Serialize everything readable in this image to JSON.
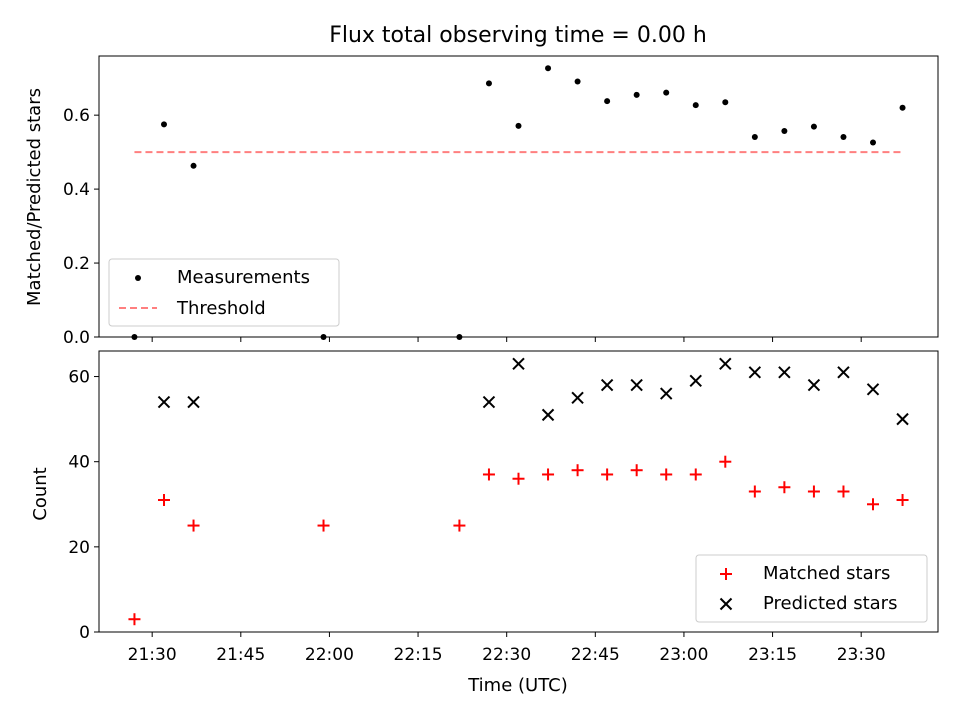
{
  "chart_data": [
    {
      "type": "scatter",
      "title": "Flux total observing time = 0.00 h",
      "ylabel": "Matched/Predicted stars",
      "ylim": [
        0,
        0.76
      ],
      "yticks": [
        "0.0",
        "0.2",
        "0.4",
        "0.6"
      ],
      "xlim": [
        "21:21",
        "23:43"
      ],
      "series": [
        {
          "name": "Measurements",
          "marker": "dot",
          "color": "#000000",
          "points": [
            [
              "21:27",
              0.0
            ],
            [
              "21:32",
              0.575
            ],
            [
              "21:37",
              0.463
            ],
            [
              "21:59",
              0.0
            ],
            [
              "22:22",
              0.0
            ],
            [
              "22:27",
              0.686
            ],
            [
              "22:32",
              0.571
            ],
            [
              "22:37",
              0.727
            ],
            [
              "22:42",
              0.691
            ],
            [
              "22:47",
              0.638
            ],
            [
              "22:52",
              0.655
            ],
            [
              "22:57",
              0.661
            ],
            [
              "23:02",
              0.627
            ],
            [
              "23:07",
              0.635
            ],
            [
              "23:12",
              0.541
            ],
            [
              "23:17",
              0.557
            ],
            [
              "23:22",
              0.569
            ],
            [
              "23:27",
              0.541
            ],
            [
              "23:32",
              0.526
            ],
            [
              "23:37",
              0.62
            ]
          ]
        },
        {
          "name": "Threshold",
          "marker": "dashed-line",
          "color": "#ff7f7f",
          "points": [
            [
              "21:27",
              0.5
            ],
            [
              "23:37",
              0.5
            ]
          ]
        }
      ],
      "legend": "lower-left"
    },
    {
      "type": "scatter",
      "xlabel": "Time (UTC)",
      "ylabel": "Count",
      "ylim": [
        0,
        66
      ],
      "yticks": [
        "0",
        "20",
        "40",
        "60"
      ],
      "xlim": [
        "21:21",
        "23:43"
      ],
      "xticks": [
        "21:30",
        "21:45",
        "22:00",
        "22:15",
        "22:30",
        "22:45",
        "23:00",
        "23:15",
        "23:30"
      ],
      "series": [
        {
          "name": "Matched stars",
          "marker": "plus",
          "color": "#ff0000",
          "points": [
            [
              "21:27",
              3
            ],
            [
              "21:32",
              31
            ],
            [
              "21:37",
              25
            ],
            [
              "21:59",
              25
            ],
            [
              "22:22",
              25
            ],
            [
              "22:27",
              37
            ],
            [
              "22:32",
              36
            ],
            [
              "22:37",
              37
            ],
            [
              "22:42",
              38
            ],
            [
              "22:47",
              37
            ],
            [
              "22:52",
              38
            ],
            [
              "22:57",
              37
            ],
            [
              "23:02",
              37
            ],
            [
              "23:07",
              40
            ],
            [
              "23:12",
              33
            ],
            [
              "23:17",
              34
            ],
            [
              "23:22",
              33
            ],
            [
              "23:27",
              33
            ],
            [
              "23:32",
              30
            ],
            [
              "23:37",
              31
            ]
          ]
        },
        {
          "name": "Predicted stars",
          "marker": "x",
          "color": "#000000",
          "points": [
            [
              "21:32",
              54
            ],
            [
              "21:37",
              54
            ],
            [
              "22:27",
              54
            ],
            [
              "22:32",
              63
            ],
            [
              "22:37",
              51
            ],
            [
              "22:42",
              55
            ],
            [
              "22:47",
              58
            ],
            [
              "22:52",
              58
            ],
            [
              "22:57",
              56
            ],
            [
              "23:02",
              59
            ],
            [
              "23:07",
              63
            ],
            [
              "23:12",
              61
            ],
            [
              "23:17",
              61
            ],
            [
              "23:22",
              58
            ],
            [
              "23:27",
              61
            ],
            [
              "23:32",
              57
            ],
            [
              "23:37",
              50
            ]
          ]
        }
      ],
      "legend": "lower-right"
    }
  ]
}
